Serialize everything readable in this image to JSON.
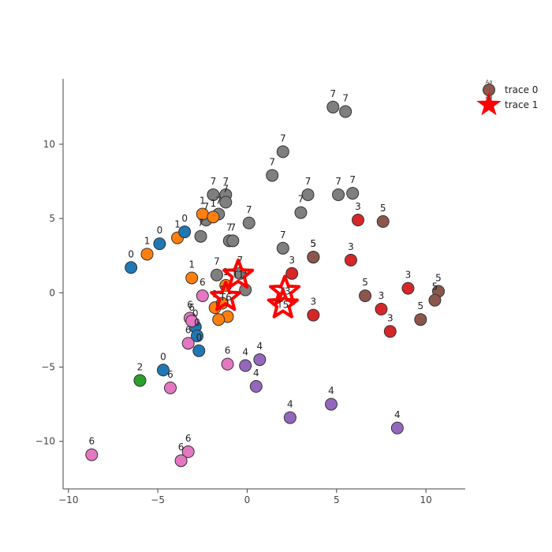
{
  "chart_data": {
    "type": "scatter",
    "xlim": [
      -10.3,
      12.2
    ],
    "ylim": [
      -13.2,
      14.4
    ],
    "xticks": [
      -10,
      -5,
      0,
      5,
      10
    ],
    "yticks": [
      -10,
      -5,
      0,
      5,
      10
    ],
    "xtick_labels": [
      "−10",
      "−5",
      "0",
      "5",
      "10"
    ],
    "ytick_labels": [
      "−10",
      "−5",
      "0",
      "5",
      "10"
    ],
    "grid": false,
    "legend_position": "top-right",
    "class_colors": {
      "0": "#1f77b4",
      "1": "#ff7f0e",
      "2": "#2ca02c",
      "3": "#d62728",
      "4": "#9467bd",
      "5": "#8c564b",
      "6": "#e377c2",
      "7": "#7f7f7f"
    },
    "legend": [
      {
        "label": "trace 0",
        "symbol": "circle",
        "color": "#8c564b",
        "mini": "Aa"
      },
      {
        "label": "trace 1",
        "symbol": "star",
        "color": "#ff0000",
        "mini": "Aa"
      }
    ],
    "series": [
      {
        "name": "trace 0",
        "symbol": "circle",
        "points": [
          {
            "x": 4.8,
            "y": 12.5,
            "label": "7"
          },
          {
            "x": 5.5,
            "y": 12.2,
            "label": "7"
          },
          {
            "x": 2.0,
            "y": 9.5,
            "label": "7"
          },
          {
            "x": 1.4,
            "y": 7.9,
            "label": "7"
          },
          {
            "x": 3.4,
            "y": 6.6,
            "label": "7"
          },
          {
            "x": 5.1,
            "y": 6.6,
            "label": "7"
          },
          {
            "x": 5.9,
            "y": 6.7,
            "label": "7"
          },
          {
            "x": 3.0,
            "y": 5.4,
            "label": "7"
          },
          {
            "x": -1.9,
            "y": 6.6,
            "label": "7"
          },
          {
            "x": -1.2,
            "y": 6.6,
            "label": "7"
          },
          {
            "x": -1.2,
            "y": 6.1,
            "label": "7"
          },
          {
            "x": -1.6,
            "y": 5.3,
            "label": "7"
          },
          {
            "x": -2.3,
            "y": 4.9,
            "label": "7"
          },
          {
            "x": 0.1,
            "y": 4.7,
            "label": "7"
          },
          {
            "x": -2.6,
            "y": 3.8,
            "label": "7"
          },
          {
            "x": -1.0,
            "y": 3.5,
            "label": "7"
          },
          {
            "x": -0.8,
            "y": 3.5,
            "label": "7"
          },
          {
            "x": 2.0,
            "y": 3.0,
            "label": "7"
          },
          {
            "x": -1.7,
            "y": 1.2,
            "label": "7"
          },
          {
            "x": -0.4,
            "y": 1.3,
            "label": "7"
          },
          {
            "x": -0.1,
            "y": 0.2,
            "label": "7"
          },
          {
            "x": -2.5,
            "y": 5.3,
            "label": "1"
          },
          {
            "x": -1.9,
            "y": 5.1,
            "label": "1"
          },
          {
            "x": -3.9,
            "y": 3.7,
            "label": "1"
          },
          {
            "x": -5.6,
            "y": 2.6,
            "label": "1"
          },
          {
            "x": -3.1,
            "y": 1.0,
            "label": "1"
          },
          {
            "x": -1.2,
            "y": 0.5,
            "label": "1"
          },
          {
            "x": -1.8,
            "y": -1.0,
            "label": "1"
          },
          {
            "x": -1.1,
            "y": -1.6,
            "label": "1"
          },
          {
            "x": -1.6,
            "y": -1.8,
            "label": "1"
          },
          {
            "x": -1.4,
            "y": -0.7,
            "label": "1"
          },
          {
            "x": -3.5,
            "y": 4.1,
            "label": "0"
          },
          {
            "x": -4.9,
            "y": 3.3,
            "label": "0"
          },
          {
            "x": -6.5,
            "y": 1.7,
            "label": "0"
          },
          {
            "x": -2.9,
            "y": -2.3,
            "label": "0"
          },
          {
            "x": -2.8,
            "y": -2.9,
            "label": "0"
          },
          {
            "x": -2.7,
            "y": -3.9,
            "label": "0"
          },
          {
            "x": -4.7,
            "y": -5.2,
            "label": "0"
          },
          {
            "x": -6.0,
            "y": -5.9,
            "label": "2"
          },
          {
            "x": 6.2,
            "y": 4.9,
            "label": "3"
          },
          {
            "x": 5.8,
            "y": 2.2,
            "label": "3"
          },
          {
            "x": 2.5,
            "y": 1.3,
            "label": "3"
          },
          {
            "x": 3.7,
            "y": -1.5,
            "label": "3"
          },
          {
            "x": 7.5,
            "y": -1.1,
            "label": "3"
          },
          {
            "x": 9.0,
            "y": 0.3,
            "label": "3"
          },
          {
            "x": 8.0,
            "y": -2.6,
            "label": "3"
          },
          {
            "x": 7.6,
            "y": 4.8,
            "label": "5"
          },
          {
            "x": 3.7,
            "y": 2.4,
            "label": "5"
          },
          {
            "x": 3.7,
            "y": 2.4,
            "label": "5"
          },
          {
            "x": 6.6,
            "y": -0.2,
            "label": "5"
          },
          {
            "x": 10.7,
            "y": 0.1,
            "label": "5"
          },
          {
            "x": 10.5,
            "y": -0.5,
            "label": "5"
          },
          {
            "x": 9.7,
            "y": -1.8,
            "label": "5"
          },
          {
            "x": -2.5,
            "y": -0.2,
            "label": "6"
          },
          {
            "x": -3.2,
            "y": -1.7,
            "label": "6"
          },
          {
            "x": -3.3,
            "y": -3.4,
            "label": "6"
          },
          {
            "x": -1.1,
            "y": -4.8,
            "label": "6"
          },
          {
            "x": -4.3,
            "y": -6.4,
            "label": "6"
          },
          {
            "x": -8.7,
            "y": -10.9,
            "label": "6"
          },
          {
            "x": -3.3,
            "y": -10.7,
            "label": "6"
          },
          {
            "x": -3.7,
            "y": -11.3,
            "label": "6"
          },
          {
            "x": -3.1,
            "y": -1.9,
            "label": "6"
          },
          {
            "x": -0.1,
            "y": -4.9,
            "label": "4"
          },
          {
            "x": 0.7,
            "y": -4.5,
            "label": "4"
          },
          {
            "x": 0.5,
            "y": -6.3,
            "label": "4"
          },
          {
            "x": 2.4,
            "y": -8.4,
            "label": "4"
          },
          {
            "x": 4.7,
            "y": -7.5,
            "label": "4"
          },
          {
            "x": 8.4,
            "y": -9.1,
            "label": "4"
          }
        ]
      },
      {
        "name": "trace 1",
        "symbol": "star",
        "points": [
          {
            "x": -0.5,
            "y": 1.2,
            "label": "T1"
          },
          {
            "x": -1.2,
            "y": -0.3,
            "label": "T6"
          },
          {
            "x": 2.1,
            "y": 0.1,
            "label": "T3"
          },
          {
            "x": 2.0,
            "y": -0.8,
            "label": "T5"
          }
        ]
      }
    ]
  }
}
